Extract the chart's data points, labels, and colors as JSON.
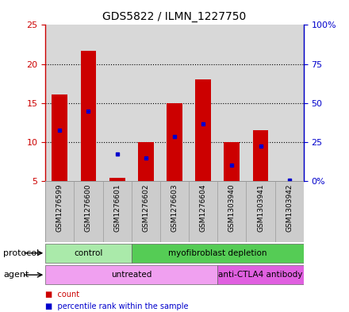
{
  "title": "GDS5822 / ILMN_1227750",
  "samples": [
    "GSM1276599",
    "GSM1276600",
    "GSM1276601",
    "GSM1276602",
    "GSM1276603",
    "GSM1276604",
    "GSM1303940",
    "GSM1303941",
    "GSM1303942"
  ],
  "count_top": [
    16.1,
    21.7,
    5.4,
    10.0,
    15.0,
    18.0,
    10.0,
    11.5,
    5.0
  ],
  "count_bottom": [
    5.0,
    5.0,
    5.0,
    5.0,
    5.0,
    5.0,
    5.0,
    5.0,
    5.0
  ],
  "percentile": [
    11.5,
    13.9,
    8.5,
    7.9,
    10.7,
    12.3,
    7.0,
    9.5,
    5.1
  ],
  "ylim_left": [
    5,
    25
  ],
  "ylim_right": [
    0,
    100
  ],
  "yticks_left": [
    5,
    10,
    15,
    20,
    25
  ],
  "yticks_right": [
    0,
    25,
    50,
    75,
    100
  ],
  "ytick_labels_left": [
    "5",
    "10",
    "15",
    "20",
    "25"
  ],
  "ytick_labels_right": [
    "0%",
    "25",
    "50",
    "75",
    "100%"
  ],
  "protocol_groups": [
    {
      "label": "control",
      "start": 0,
      "end": 3,
      "color": "#aaeaaa"
    },
    {
      "label": "myofibroblast depletion",
      "start": 3,
      "end": 9,
      "color": "#55cc55"
    }
  ],
  "agent_groups": [
    {
      "label": "untreated",
      "start": 0,
      "end": 6,
      "color": "#f0a0f0"
    },
    {
      "label": "anti-CTLA4 antibody",
      "start": 6,
      "end": 9,
      "color": "#e060e0"
    }
  ],
  "bar_color": "#cc0000",
  "percentile_color": "#0000cc",
  "left_tick_color": "#cc0000",
  "right_tick_color": "#0000cc",
  "bar_width": 0.55,
  "plot_bg": "#d8d8d8",
  "grid_color": "black",
  "legend_items": [
    {
      "label": "count",
      "color": "#cc0000"
    },
    {
      "label": "percentile rank within the sample",
      "color": "#0000cc"
    }
  ]
}
